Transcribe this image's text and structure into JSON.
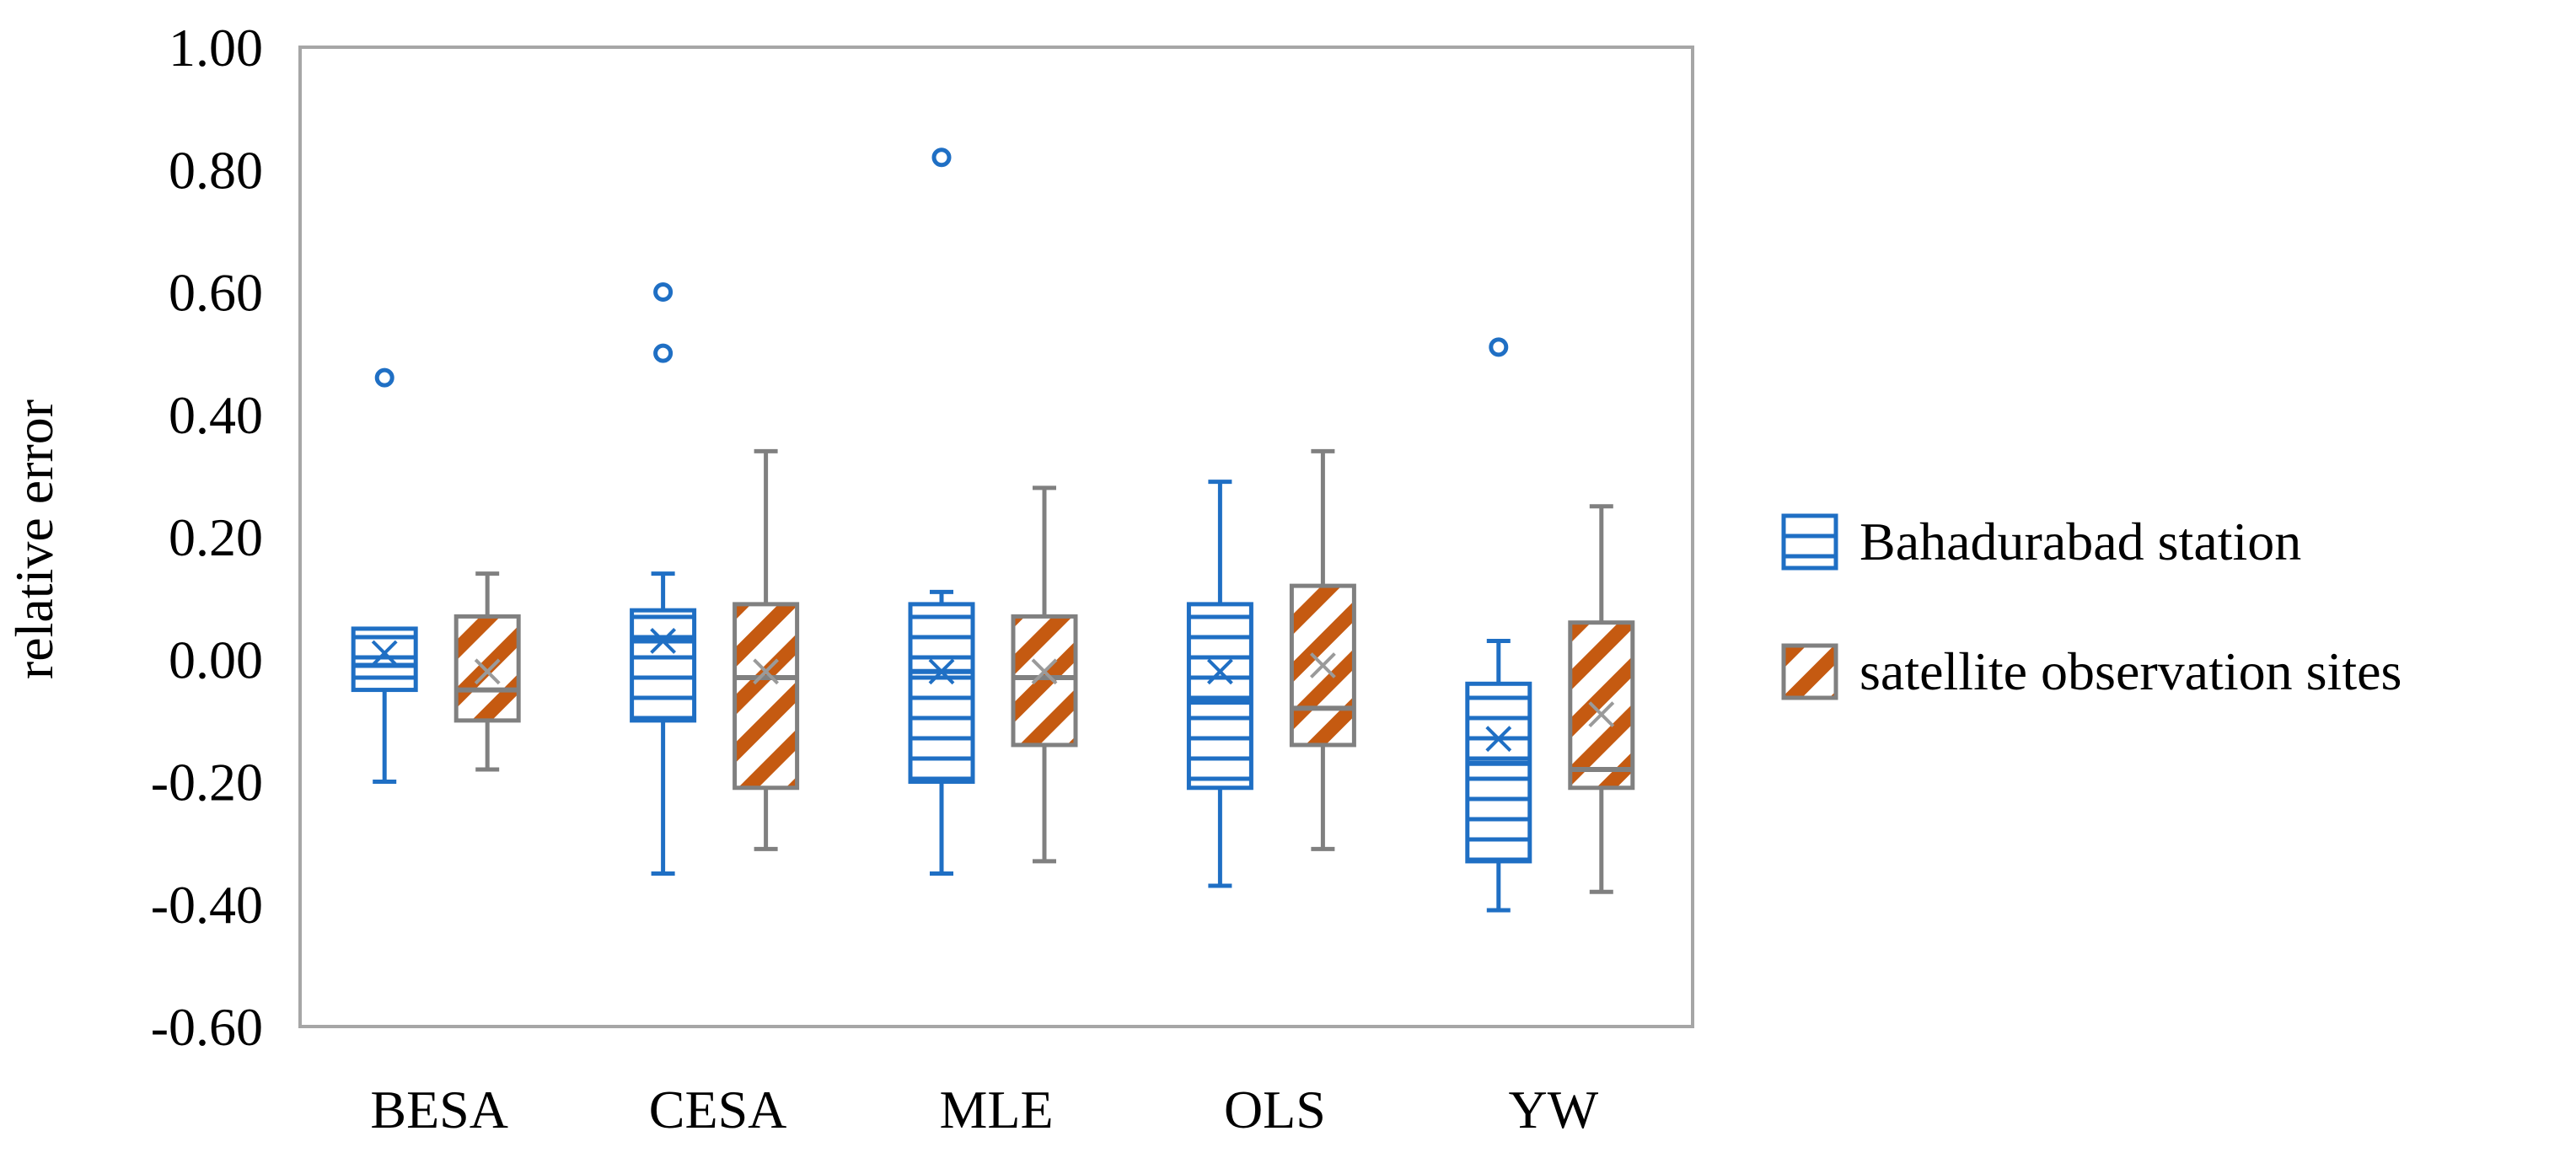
{
  "chart_data": {
    "type": "boxplot",
    "title": "",
    "xlabel": "",
    "ylabel": "relative error",
    "ylim": [
      -0.6,
      1.0
    ],
    "yticks": [
      "1.00",
      "0.80",
      "0.60",
      "0.40",
      "0.20",
      "0.00",
      "-0.20",
      "-0.40",
      "-0.60"
    ],
    "categories": [
      "BESA",
      "CESA",
      "MLE",
      "OLS",
      "YW"
    ],
    "legend_position": "right",
    "series": [
      {
        "name": "Bahadurabad station",
        "color": "#1f6fc4",
        "pattern": "horizontal-lines",
        "boxes": [
          {
            "min": -0.2,
            "q1": -0.05,
            "median": -0.01,
            "q3": 0.05,
            "max": 0.05,
            "mean": 0.01,
            "outliers": [
              0.46
            ]
          },
          {
            "min": -0.35,
            "q1": -0.1,
            "median": 0.03,
            "q3": 0.08,
            "max": 0.14,
            "mean": 0.03,
            "outliers": [
              0.5,
              0.6
            ]
          },
          {
            "min": -0.35,
            "q1": -0.2,
            "median": -0.02,
            "q3": 0.09,
            "max": 0.11,
            "mean": -0.02,
            "outliers": [
              0.82
            ]
          },
          {
            "min": -0.37,
            "q1": -0.21,
            "median": -0.07,
            "q3": 0.09,
            "max": 0.29,
            "mean": -0.02,
            "outliers": []
          },
          {
            "min": -0.41,
            "q1": -0.33,
            "median": -0.17,
            "q3": -0.04,
            "max": 0.03,
            "mean": -0.13,
            "outliers": [
              0.51
            ]
          }
        ]
      },
      {
        "name": "satellite observation sites",
        "color": "#c55a11",
        "pattern": "diagonal-stripes",
        "boxes": [
          {
            "min": -0.18,
            "q1": -0.1,
            "median": -0.05,
            "q3": 0.07,
            "max": 0.14,
            "mean": -0.02,
            "outliers": []
          },
          {
            "min": -0.31,
            "q1": -0.21,
            "median": -0.03,
            "q3": 0.09,
            "max": 0.34,
            "mean": -0.02,
            "outliers": []
          },
          {
            "min": -0.33,
            "q1": -0.14,
            "median": -0.03,
            "q3": 0.07,
            "max": 0.28,
            "mean": -0.02,
            "outliers": []
          },
          {
            "min": -0.31,
            "q1": -0.14,
            "median": -0.08,
            "q3": 0.12,
            "max": 0.34,
            "mean": -0.01,
            "outliers": []
          },
          {
            "min": -0.38,
            "q1": -0.21,
            "median": -0.18,
            "q3": 0.06,
            "max": 0.25,
            "mean": -0.09,
            "outliers": []
          }
        ]
      }
    ]
  }
}
